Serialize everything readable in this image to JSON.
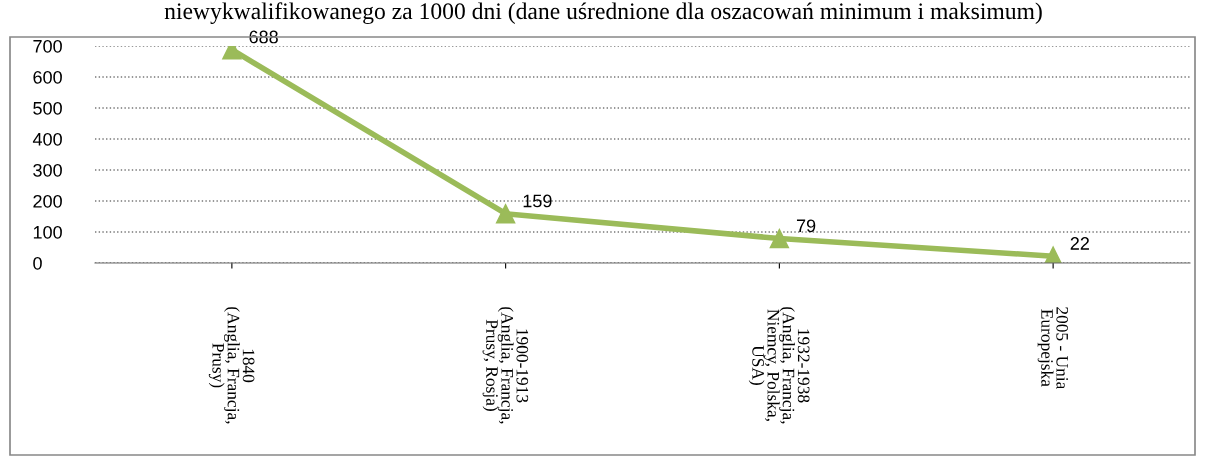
{
  "chart_data": {
    "type": "line",
    "title": "niewykwalifikowanego za 1000 dni (dane uśrednione dla oszacowań minimum i maksimum)",
    "categories": [
      "1840\n(Anglia, Francja,\nPrusy)",
      "1900-1913\n(Anglia, Francja,\nPrusy, Rosja)",
      "1932-1938\n(Anglia, Francja,\nNiemcy, Polska,\nUSA)",
      "2005 - Unia\nEuropejska"
    ],
    "series": [
      {
        "color": "#9bbb59",
        "values": [
          688,
          159,
          79,
          22
        ]
      }
    ],
    "ylim": [
      0,
      700
    ],
    "yticks": [
      0,
      100,
      200,
      300,
      400,
      500,
      600,
      700
    ],
    "grid": "y",
    "marker": "triangle",
    "line_style": "solid",
    "data_labels": true,
    "legend": false
  }
}
